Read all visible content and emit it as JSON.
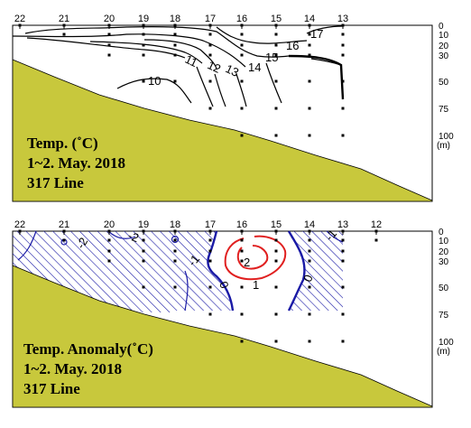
{
  "panels": [
    {
      "id": "temp",
      "title_lines": [
        "Temp. (˚C)",
        "1~2. May. 2018",
        "317 Line"
      ],
      "stations": [
        "22",
        "21",
        "20",
        "19",
        "18",
        "17",
        "16",
        "15",
        "14",
        "13"
      ],
      "depths": [
        "0",
        "10",
        "20",
        "30",
        "50",
        "75",
        "100"
      ],
      "depth_unit": "(m)",
      "contour_labels": [
        "10",
        "11",
        "12",
        "13",
        "14",
        "15",
        "16",
        "17"
      ]
    },
    {
      "id": "anomaly",
      "title_lines": [
        "Temp. Anomaly(˚C)",
        "1~2. May. 2018",
        "317 Line"
      ],
      "stations": [
        "22",
        "21",
        "20",
        "19",
        "18",
        "17",
        "16",
        "15",
        "14",
        "13",
        "12"
      ],
      "depths": [
        "0",
        "10",
        "20",
        "30",
        "50",
        "75",
        "100"
      ],
      "depth_unit": "(m)",
      "contour_labels": [
        "-2",
        "-2",
        "-1",
        "-1",
        "0",
        "0",
        "1",
        "2"
      ]
    }
  ],
  "colors": {
    "seafloor": "#c8c83c",
    "negative": "#1a1aa6",
    "positive": "#e02020",
    "contour": "#000000"
  },
  "chart_data": [
    {
      "type": "contour",
      "title": "Temp. (˚C)",
      "subtitle": "1~2. May. 2018 / 317 Line",
      "x_label": "",
      "x_ticks": [
        "22",
        "21",
        "20",
        "19",
        "18",
        "17",
        "16",
        "15",
        "14",
        "13"
      ],
      "y_ticks": [
        0,
        10,
        20,
        30,
        50,
        75,
        100
      ],
      "y_unit": "(m)",
      "isotherms": [
        10,
        11,
        12,
        13,
        14,
        15,
        16,
        17
      ]
    },
    {
      "type": "contour",
      "title": "Temp. Anomaly(˚C)",
      "subtitle": "1~2. May. 2018 / 317 Line",
      "x_label": "",
      "x_ticks": [
        "22",
        "21",
        "20",
        "19",
        "18",
        "17",
        "16",
        "15",
        "14",
        "13",
        "12"
      ],
      "y_ticks": [
        0,
        10,
        20,
        30,
        50,
        75,
        100
      ],
      "y_unit": "(m)",
      "anomaly_contours": [
        -2,
        -1,
        0,
        1,
        2
      ]
    }
  ]
}
